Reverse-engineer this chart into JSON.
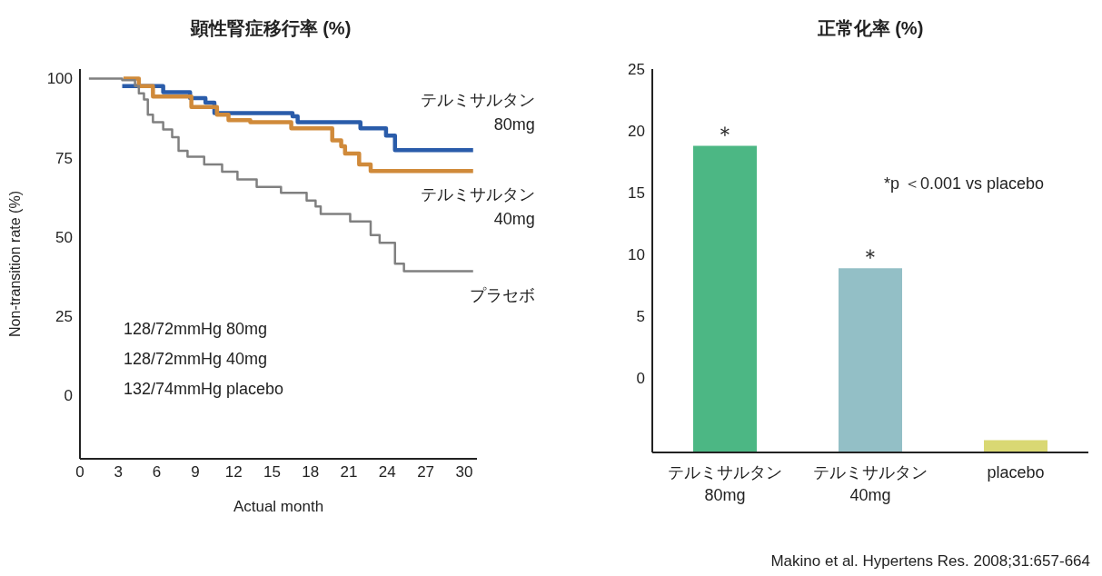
{
  "chart_data": [
    {
      "type": "step",
      "title": "顕性腎症移行率 (%)",
      "xlabel": "Actual month",
      "ylabel": "Non-transition rate (%)",
      "xlim": [
        0,
        31
      ],
      "ylim": [
        -20,
        103
      ],
      "xticks": [
        0,
        3,
        6,
        9,
        12,
        15,
        18,
        21,
        24,
        27,
        30
      ],
      "yticks": [
        0,
        25,
        50,
        75,
        100
      ],
      "grid": false,
      "legend": false,
      "series": [
        {
          "name": "テルミサルタン 80mg",
          "color": "#2a5caa",
          "x": [
            3.3,
            6.5,
            8.6,
            9.8,
            10.5,
            16.6,
            17.0,
            21.9,
            23.9,
            24.6,
            30.7
          ],
          "values": [
            97.6,
            95.7,
            93.8,
            92.4,
            89.1,
            88.1,
            86.2,
            84.3,
            82.0,
            77.4,
            77.4
          ]
        },
        {
          "name": "テルミサルタン 40mg",
          "color": "#d08a3a",
          "x": [
            3.4,
            4.6,
            5.7,
            8.7,
            10.7,
            11.6,
            13.3,
            16.5,
            19.7,
            20.4,
            20.7,
            21.8,
            22.7,
            30.7
          ],
          "values": [
            100,
            97.6,
            94.3,
            91.0,
            88.6,
            86.9,
            86.2,
            84.3,
            80.5,
            78.6,
            76.3,
            72.9,
            70.8,
            70.8
          ]
        },
        {
          "name": "プラセボ",
          "color": "#808080",
          "x": [
            0.7,
            3.3,
            4.3,
            4.6,
            5.0,
            5.3,
            5.7,
            6.5,
            7.2,
            7.7,
            8.4,
            9.7,
            11.1,
            12.3,
            13.8,
            15.7,
            17.7,
            18.4,
            18.8,
            21.1,
            22.7,
            23.4,
            24.6,
            25.3,
            30.7
          ],
          "values": [
            100,
            99.5,
            97.6,
            95.3,
            93.4,
            88.6,
            86.2,
            83.9,
            81.5,
            77.2,
            75.3,
            72.9,
            70.6,
            68.2,
            65.8,
            63.9,
            61.5,
            59.6,
            57.3,
            54.9,
            50.6,
            48.2,
            41.6,
            39.2,
            39.2
          ]
        }
      ],
      "annotations": [
        "128/72mmHg 80mg",
        "128/72mmHg 40mg",
        "132/74mmHg placebo"
      ]
    },
    {
      "type": "bar",
      "title": "正常化率 (%)",
      "categories": [
        "テルミサルタン 80mg",
        "テルミサルタン 40mg",
        "placebo"
      ],
      "base": [
        -6,
        -6,
        -6
      ],
      "values": [
        24.8,
        14.9,
        1
      ],
      "colors": [
        "#4cb784",
        "#93bfc6",
        "#d9d873"
      ],
      "value_labels": [
        "＊",
        "＊",
        null
      ],
      "ylim": [
        -6,
        25
      ],
      "yticks": [
        0,
        5,
        10,
        15,
        20,
        25
      ],
      "grid": false,
      "annotations": [
        "*p ＜0.001 vs placebo",
        "Makino et al. Hypertens Res. 2008;31:657-664"
      ]
    }
  ]
}
